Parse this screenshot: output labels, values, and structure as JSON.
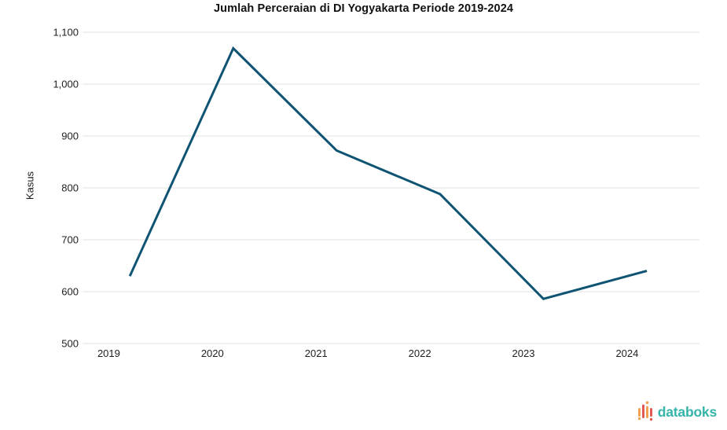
{
  "title": "Jumlah Perceraian di DI Yogyakarta Periode 2019-2024",
  "chart_data": {
    "type": "line",
    "title": "Jumlah Perceraian di DI Yogyakarta Periode 2019-2024",
    "categories": [
      "2019",
      "2020",
      "2021",
      "2022",
      "2023",
      "2024"
    ],
    "series": [
      {
        "name": "Kasus",
        "values": [
          630,
          1069,
          872,
          788,
          586,
          640
        ]
      }
    ],
    "xlabel": "",
    "ylabel": "Kasus",
    "ylim": [
      500,
      1100
    ],
    "ytick_step": 100,
    "ytick_labels": [
      "500",
      "600",
      "700",
      "800",
      "900",
      "1,000",
      "1,100"
    ],
    "grid": true,
    "legend": false,
    "line_color": "#0f5472"
  },
  "colors": {
    "line": "#0f5472",
    "grid": "#e2e2e2",
    "tick_text": "#212121",
    "title_text": "#111111",
    "background": "#ffffff",
    "logo_teal": "#35b5a9",
    "logo_orange": "#f2a154",
    "logo_red": "#e15a52"
  },
  "logo": {
    "text": "databoks",
    "icon": "waveform-bars-icon"
  }
}
